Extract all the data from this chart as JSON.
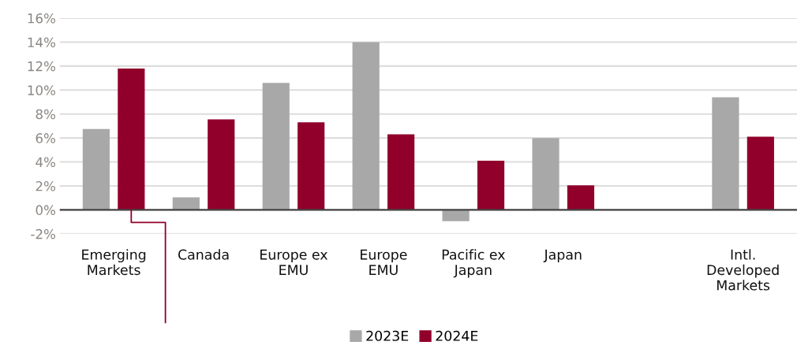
{
  "chart_data": {
    "type": "bar",
    "categories": [
      "Emerging\nMarkets",
      "Canada",
      "Europe ex\nEMU",
      "Europe\nEMU",
      "Pacific ex\nJapan",
      "Japan",
      null,
      "Intl.\nDeveloped\nMarkets"
    ],
    "series": [
      {
        "name": "2023E",
        "color": "#a8a8a9",
        "values": [
          6.75,
          1.05,
          10.6,
          14.0,
          -0.95,
          6.0,
          null,
          9.4
        ]
      },
      {
        "name": "2024E",
        "color": "#91002b",
        "values": [
          11.8,
          7.55,
          7.3,
          6.3,
          4.1,
          2.05,
          null,
          6.1
        ]
      }
    ],
    "ylim": [
      -2,
      16
    ],
    "yticks": [
      {
        "value": -2,
        "label": "-2%"
      },
      {
        "value": 0,
        "label": "0%"
      },
      {
        "value": 2,
        "label": "2%"
      },
      {
        "value": 4,
        "label": "4%"
      },
      {
        "value": 6,
        "label": "6%"
      },
      {
        "value": 8,
        "label": "8%"
      },
      {
        "value": 10,
        "label": "10%"
      },
      {
        "value": 12,
        "label": "12%"
      },
      {
        "value": 14,
        "label": "14%"
      },
      {
        "value": 16,
        "label": "16%"
      }
    ],
    "grid": "y",
    "legend": "bottom"
  }
}
